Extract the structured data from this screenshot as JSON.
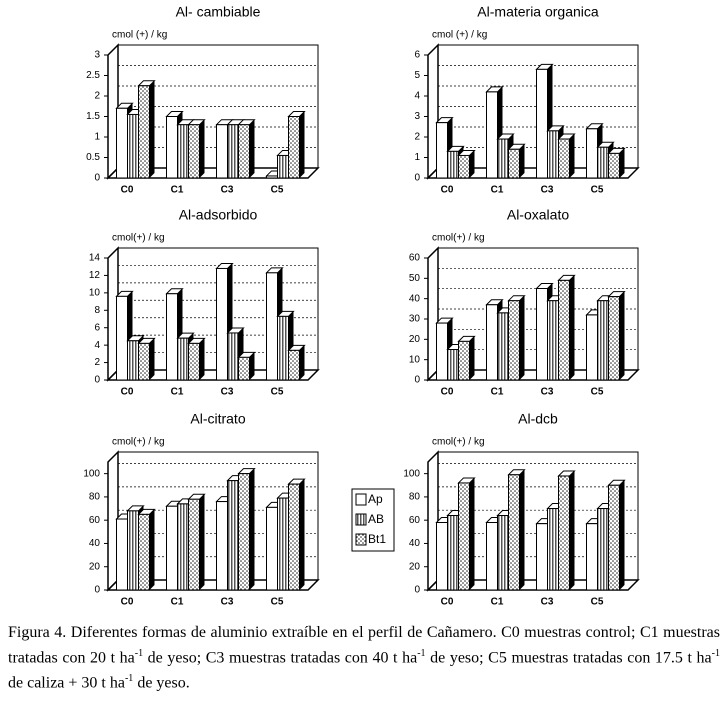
{
  "chart_data": [
    {
      "type": "bar3d",
      "title": "Al- cambiable",
      "ylabel": "cmol (+) / kg",
      "categories": [
        "C0",
        "C1",
        "C3",
        "C5"
      ],
      "ylim": [
        0,
        3
      ],
      "yticks": [
        0,
        0.5,
        1,
        1.5,
        2,
        2.5,
        3
      ],
      "grid": true,
      "series": [
        {
          "name": "Ap",
          "color": "#ffffff",
          "pattern": "none",
          "values": [
            1.7,
            1.5,
            1.3,
            0.05
          ]
        },
        {
          "name": "AB",
          "color": "#b8b8b8",
          "pattern": "lines",
          "values": [
            1.55,
            1.3,
            1.3,
            0.55
          ]
        },
        {
          "name": "Bt1",
          "color": "#e0e0e0",
          "pattern": "dots",
          "values": [
            2.25,
            1.3,
            1.3,
            1.5
          ]
        }
      ]
    },
    {
      "type": "bar3d",
      "title": "Al-materia organica",
      "ylabel": "cmol (+) / kg",
      "categories": [
        "C0",
        "C1",
        "C3",
        "C5"
      ],
      "ylim": [
        0,
        6
      ],
      "yticks": [
        0,
        1,
        2,
        3,
        4,
        5,
        6
      ],
      "grid": true,
      "series": [
        {
          "name": "Ap",
          "color": "#ffffff",
          "pattern": "none",
          "values": [
            2.7,
            4.2,
            5.3,
            2.4
          ]
        },
        {
          "name": "AB",
          "color": "#b8b8b8",
          "pattern": "lines",
          "values": [
            1.3,
            1.9,
            2.3,
            1.5
          ]
        },
        {
          "name": "Bt1",
          "color": "#e0e0e0",
          "pattern": "dots",
          "values": [
            1.1,
            1.4,
            1.9,
            1.2
          ]
        }
      ]
    },
    {
      "type": "bar3d",
      "title": "Al-adsorbido",
      "ylabel": "cmol(+) / kg",
      "categories": [
        "C0",
        "C1",
        "C3",
        "C5"
      ],
      "ylim": [
        0,
        14
      ],
      "yticks": [
        0,
        2,
        4,
        6,
        8,
        10,
        12,
        14
      ],
      "grid": true,
      "series": [
        {
          "name": "Ap",
          "color": "#ffffff",
          "pattern": "none",
          "values": [
            9.6,
            9.9,
            12.8,
            12.3
          ]
        },
        {
          "name": "AB",
          "color": "#b8b8b8",
          "pattern": "lines",
          "values": [
            4.5,
            4.8,
            5.4,
            7.3
          ]
        },
        {
          "name": "Bt1",
          "color": "#e0e0e0",
          "pattern": "dots",
          "values": [
            4.2,
            4.2,
            2.6,
            3.4
          ]
        }
      ]
    },
    {
      "type": "bar3d",
      "title": "Al-oxalato",
      "ylabel": "cmol(+) / kg",
      "categories": [
        "C0",
        "C1",
        "C3",
        "C5"
      ],
      "ylim": [
        0,
        60
      ],
      "yticks": [
        0,
        10,
        20,
        30,
        40,
        50,
        60
      ],
      "grid": true,
      "series": [
        {
          "name": "Ap",
          "color": "#ffffff",
          "pattern": "none",
          "values": [
            28,
            37,
            45,
            32
          ]
        },
        {
          "name": "AB",
          "color": "#b8b8b8",
          "pattern": "lines",
          "values": [
            15,
            33,
            39,
            39
          ]
        },
        {
          "name": "Bt1",
          "color": "#e0e0e0",
          "pattern": "dots",
          "values": [
            19,
            39,
            49,
            41
          ]
        }
      ]
    },
    {
      "type": "bar3d",
      "title": "Al-citrato",
      "ylabel": "cmol(+) / kg",
      "categories": [
        "C0",
        "C1",
        "C3",
        "C5"
      ],
      "ylim": [
        0,
        110
      ],
      "yticks": [
        0,
        20,
        40,
        60,
        80,
        100
      ],
      "grid": true,
      "series": [
        {
          "name": "Ap",
          "color": "#ffffff",
          "pattern": "none",
          "values": [
            61,
            72,
            76,
            71
          ]
        },
        {
          "name": "AB",
          "color": "#b8b8b8",
          "pattern": "lines",
          "values": [
            68,
            74,
            94,
            79
          ]
        },
        {
          "name": "Bt1",
          "color": "#e0e0e0",
          "pattern": "dots",
          "values": [
            65,
            78,
            100,
            91
          ]
        }
      ]
    },
    {
      "type": "bar3d",
      "title": "Al-dcb",
      "ylabel": "cmol(+) / kg",
      "categories": [
        "C0",
        "C1",
        "C3",
        "C5"
      ],
      "ylim": [
        0,
        110
      ],
      "yticks": [
        0,
        20,
        40,
        60,
        80,
        100
      ],
      "grid": true,
      "series": [
        {
          "name": "Ap",
          "color": "#ffffff",
          "pattern": "none",
          "values": [
            58,
            58,
            57,
            57
          ]
        },
        {
          "name": "AB",
          "color": "#b8b8b8",
          "pattern": "lines",
          "values": [
            64,
            64,
            70,
            70
          ]
        },
        {
          "name": "Bt1",
          "color": "#e0e0e0",
          "pattern": "dots",
          "values": [
            92,
            99,
            98,
            90
          ]
        }
      ]
    }
  ],
  "caption": [
    "Figura 4. Diferentes formas de aluminio extraíble en el perfil de Cañamero. C0 muestras control; C1 muestras tratadas con 20 t ha",
    "-1",
    " de yeso; C3 muestras tratadas con 40 t ha",
    "-1",
    " de yeso; C5 muestras tratadas con 17.5 t ha",
    "-1",
    " de caliza + 30 t ha",
    "-1",
    " de yeso."
  ]
}
